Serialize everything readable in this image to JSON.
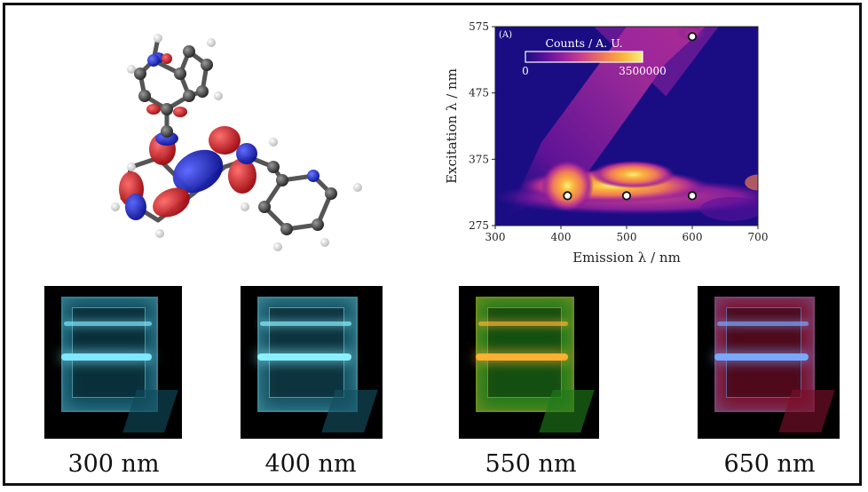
{
  "chart_data": {
    "type": "heatmap",
    "panel_label": "(A)",
    "xlabel": "Emission λ / nm",
    "ylabel": "Excitation λ / nm",
    "xlim": [
      300,
      700
    ],
    "ylim": [
      275,
      575
    ],
    "x_ticks": [
      "300",
      "400",
      "500",
      "600",
      "700"
    ],
    "y_ticks": [
      "275",
      "375",
      "475",
      "575"
    ],
    "colorbar": {
      "label": "Counts / A. U.",
      "min_label": "0",
      "max_label": "3500000",
      "min": 0,
      "max": 3500000
    },
    "colormap": [
      "#1a0d84",
      "#5b119a",
      "#9a23a0",
      "#d0458a",
      "#ef7a59",
      "#fbb33b",
      "#f9f07a"
    ],
    "marked_points": [
      {
        "x": 410,
        "y": 320
      },
      {
        "x": 500,
        "y": 320
      },
      {
        "x": 600,
        "y": 320
      },
      {
        "x": 600,
        "y": 560
      }
    ]
  },
  "photos": [
    {
      "caption": "300 nm",
      "glow": "#7fe7ff",
      "body": "#0e4a5a"
    },
    {
      "caption": "400 nm",
      "glow": "#8af0ff",
      "body": "#134f60"
    },
    {
      "caption": "550 nm",
      "glow": "#ffb030",
      "body": "#1e7a1a"
    },
    {
      "caption": "650 nm",
      "glow": "#7aa8ff",
      "body": "#7a0f2a"
    }
  ],
  "molecule": {
    "orbital_positive": "#d4141c",
    "orbital_negative": "#1a24c8"
  }
}
